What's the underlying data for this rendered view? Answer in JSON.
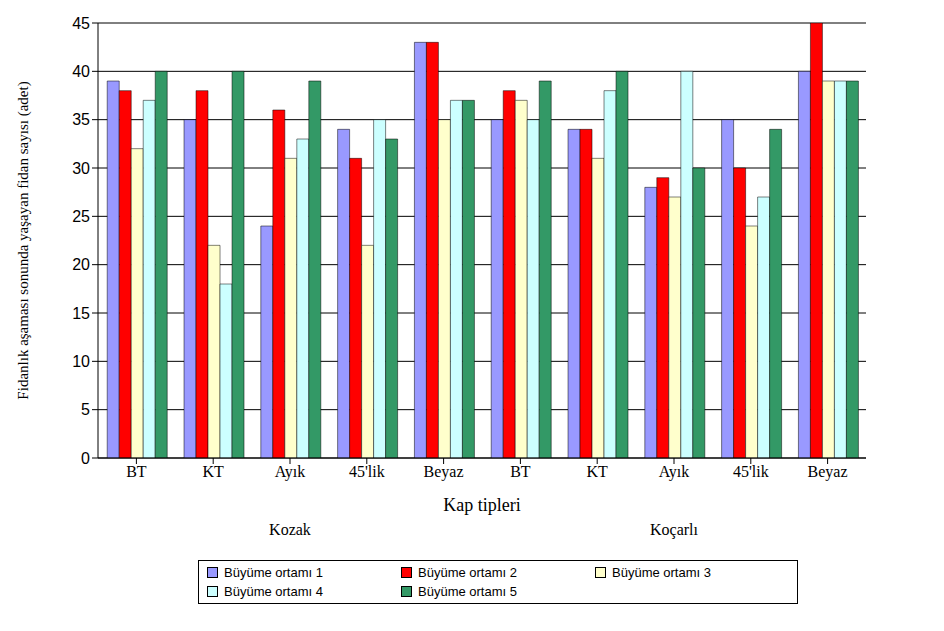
{
  "chart_data": {
    "type": "bar",
    "x_label": "Kap tipleri",
    "y_label": "Fidanlık aşaması sonunda yaşayan fidan sayısı (adet)",
    "categories": [
      "BT",
      "KT",
      "Ayık",
      "45'lik",
      "Beyaz",
      "BT",
      "KT",
      "Ayık",
      "45'lik",
      "Beyaz"
    ],
    "groups": [
      {
        "name": "Kozak",
        "count": 5
      },
      {
        "name": "Koçarlı",
        "count": 5
      }
    ],
    "series": [
      {
        "name": "Büyüme ortamı 1",
        "color": "#9999ff",
        "values": [
          39,
          35,
          24,
          34,
          43,
          35,
          34,
          28,
          35,
          40
        ]
      },
      {
        "name": "Büyüme ortamı 2",
        "color": "#ff0000",
        "values": [
          38,
          38,
          36,
          31,
          43,
          38,
          34,
          29,
          30,
          45
        ]
      },
      {
        "name": "Büyüme ortamı 3",
        "color": "#ffffcc",
        "values": [
          32,
          22,
          31,
          22,
          35,
          37,
          31,
          27,
          24,
          39
        ]
      },
      {
        "name": "Büyüme ortamı 4",
        "color": "#ccffff",
        "values": [
          37,
          18,
          33,
          35,
          37,
          35,
          38,
          40,
          27,
          39
        ]
      },
      {
        "name": "Büyüme ortamı 5",
        "color": "#339966",
        "values": [
          40,
          40,
          39,
          33,
          37,
          39,
          40,
          30,
          34,
          39
        ]
      }
    ],
    "ylim": [
      0,
      45
    ],
    "yticks": [
      0,
      5,
      10,
      15,
      20,
      25,
      30,
      35,
      40,
      45
    ],
    "grid": true,
    "legend": "bottom"
  }
}
